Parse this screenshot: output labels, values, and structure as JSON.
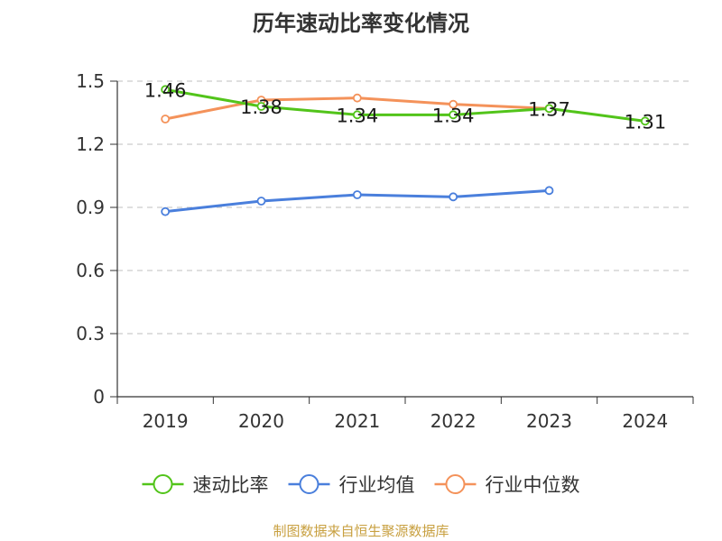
{
  "chart_data": {
    "type": "line",
    "title": "历年速动比率变化情况",
    "categories": [
      "2019",
      "2020",
      "2021",
      "2022",
      "2023",
      "2024"
    ],
    "ylim": [
      0,
      1.5
    ],
    "yticks": [
      "0",
      "0.3",
      "0.6",
      "0.9",
      "1.2",
      "1.5"
    ],
    "grid": true,
    "legend_position": "bottom",
    "series": [
      {
        "name": "速动比率",
        "color": "#52c41a",
        "values": [
          1.46,
          1.38,
          1.34,
          1.34,
          1.37,
          1.31
        ],
        "labels": [
          "1.46",
          "1.38",
          "1.34",
          "1.34",
          "1.37",
          "1.31"
        ]
      },
      {
        "name": "行业均值",
        "color": "#4a7fdc",
        "values": [
          0.88,
          0.93,
          0.96,
          0.95,
          0.98,
          null
        ]
      },
      {
        "name": "行业中位数",
        "color": "#f4925a",
        "values": [
          1.32,
          1.41,
          1.42,
          1.39,
          1.37,
          null
        ]
      }
    ]
  },
  "footer": {
    "source": "制图数据来自恒生聚源数据库"
  }
}
